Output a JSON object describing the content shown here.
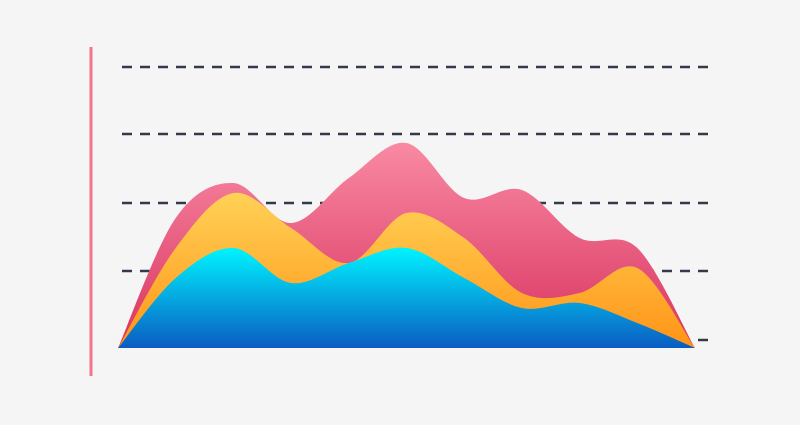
{
  "chart_data": {
    "type": "area",
    "x": [
      0,
      10,
      20,
      30,
      40,
      50,
      60,
      70,
      80,
      90,
      100
    ],
    "xlim": [
      0,
      100
    ],
    "ylim": [
      0,
      300
    ],
    "series": [
      {
        "color": [
          "#f98aa4",
          "#d8325f"
        ],
        "values": [
          0,
          130,
          165,
          125,
          170,
          205,
          150,
          158,
          110,
          100,
          0
        ]
      },
      {
        "color": [
          "#ffd257",
          "#ff9416"
        ],
        "values": [
          0,
          100,
          155,
          120,
          85,
          135,
          110,
          55,
          55,
          80,
          0
        ]
      },
      {
        "color": [
          "#00f4ff",
          "#0a5cc2"
        ],
        "values": [
          0,
          70,
          100,
          65,
          85,
          100,
          70,
          40,
          45,
          25,
          0
        ]
      }
    ]
  }
}
